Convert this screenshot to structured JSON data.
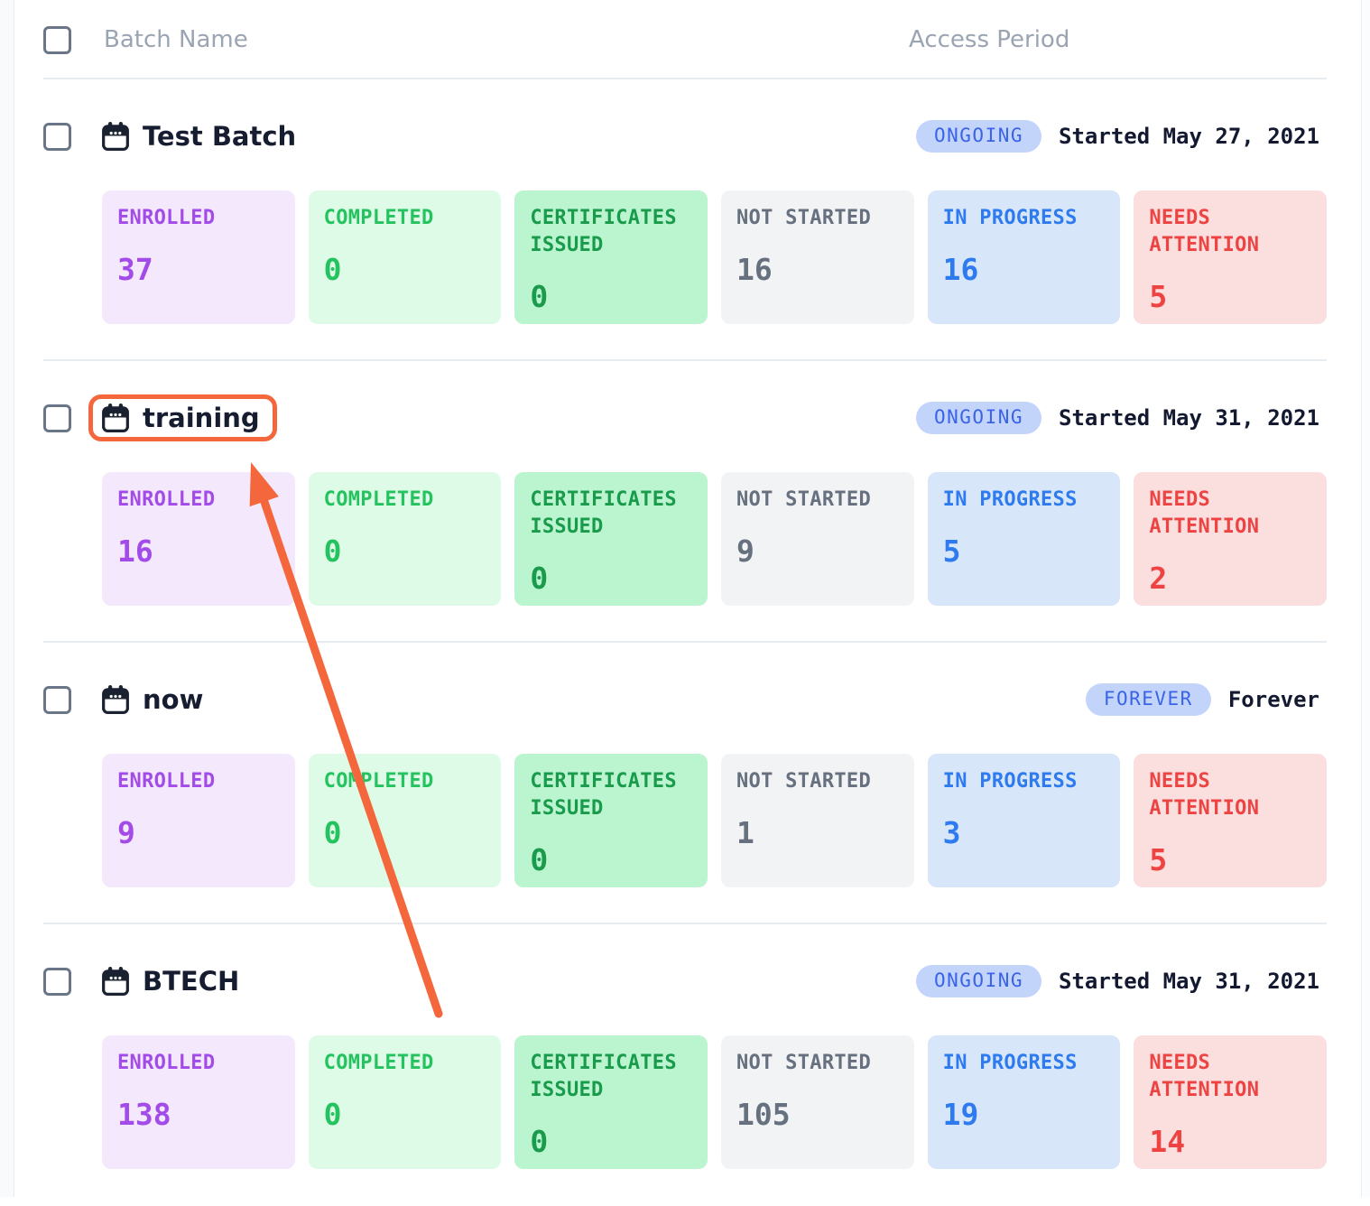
{
  "header": {
    "batch_name": "Batch Name",
    "access_period": "Access Period"
  },
  "rows": [
    {
      "name": "Test Batch",
      "badge": "ONGOING",
      "access": "Started May 27, 2021",
      "highlighted": false,
      "stats": [
        {
          "label": "ENROLLED",
          "value": "37",
          "theme": "purple"
        },
        {
          "label": "COMPLETED",
          "value": "0",
          "theme": "green"
        },
        {
          "label": "CERTIFICATES ISSUED",
          "value": "0",
          "theme": "green-dark"
        },
        {
          "label": "NOT STARTED",
          "value": "16",
          "theme": "gray"
        },
        {
          "label": "IN PROGRESS",
          "value": "16",
          "theme": "blue"
        },
        {
          "label": "NEEDS ATTENTION",
          "value": "5",
          "theme": "red"
        }
      ]
    },
    {
      "name": "training",
      "badge": "ONGOING",
      "access": "Started May 31, 2021",
      "highlighted": true,
      "stats": [
        {
          "label": "ENROLLED",
          "value": "16",
          "theme": "purple"
        },
        {
          "label": "COMPLETED",
          "value": "0",
          "theme": "green"
        },
        {
          "label": "CERTIFICATES ISSUED",
          "value": "0",
          "theme": "green-dark"
        },
        {
          "label": "NOT STARTED",
          "value": "9",
          "theme": "gray"
        },
        {
          "label": "IN PROGRESS",
          "value": "5",
          "theme": "blue"
        },
        {
          "label": "NEEDS ATTENTION",
          "value": "2",
          "theme": "red"
        }
      ]
    },
    {
      "name": "now",
      "badge": "FOREVER",
      "access": "Forever",
      "highlighted": false,
      "stats": [
        {
          "label": "ENROLLED",
          "value": "9",
          "theme": "purple"
        },
        {
          "label": "COMPLETED",
          "value": "0",
          "theme": "green"
        },
        {
          "label": "CERTIFICATES ISSUED",
          "value": "0",
          "theme": "green-dark"
        },
        {
          "label": "NOT STARTED",
          "value": "1",
          "theme": "gray"
        },
        {
          "label": "IN PROGRESS",
          "value": "3",
          "theme": "blue"
        },
        {
          "label": "NEEDS ATTENTION",
          "value": "5",
          "theme": "red"
        }
      ]
    },
    {
      "name": "BTECH",
      "badge": "ONGOING",
      "access": "Started May 31, 2021",
      "highlighted": false,
      "stats": [
        {
          "label": "ENROLLED",
          "value": "138",
          "theme": "purple"
        },
        {
          "label": "COMPLETED",
          "value": "0",
          "theme": "green"
        },
        {
          "label": "CERTIFICATES ISSUED",
          "value": "0",
          "theme": "green-dark"
        },
        {
          "label": "NOT STARTED",
          "value": "105",
          "theme": "gray"
        },
        {
          "label": "IN PROGRESS",
          "value": "19",
          "theme": "blue"
        },
        {
          "label": "NEEDS ATTENTION",
          "value": "14",
          "theme": "red"
        }
      ]
    }
  ],
  "annotation": {
    "type": "highlight-box-with-arrow",
    "target_text": "training",
    "color": "#f4673c"
  },
  "colors": {
    "badge_bg": "#c3d4fb",
    "badge_text": "#3b63e8",
    "enrolled": "#a24be8",
    "completed": "#25c35f",
    "certificates_issued": "#1a9b4b",
    "not_started": "#66707f",
    "in_progress": "#2e7bf0",
    "needs_attention": "#ee4343",
    "annotation_orange": "#f4673c"
  }
}
